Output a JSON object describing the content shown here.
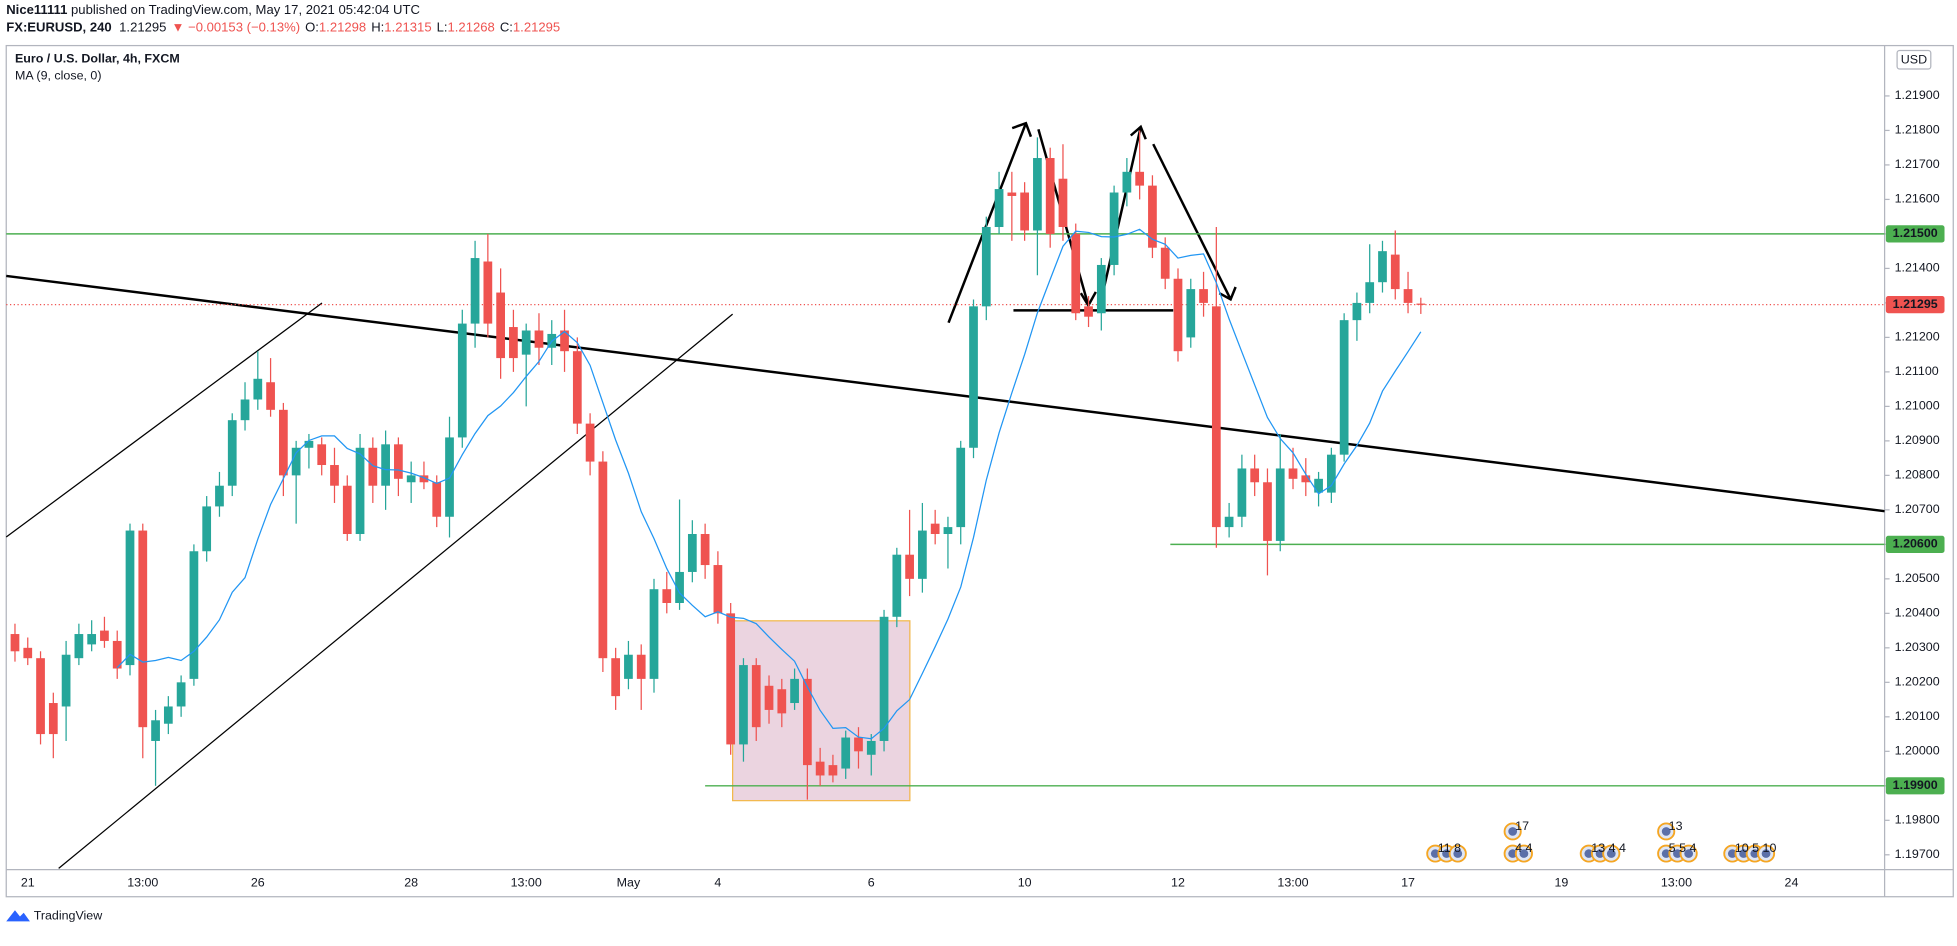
{
  "chart_data": {
    "type": "candlestick",
    "title": "Euro / U.S. Dollar, 4h, FXCM",
    "currency": "USD",
    "up_color": "#26a69a",
    "down_color": "#ef5350",
    "grid": false,
    "ylim": [
      1.19657,
      1.22046
    ],
    "yticks": [
      {
        "value": 1.197,
        "label": "1.19700"
      },
      {
        "value": 1.198,
        "label": "1.19800"
      },
      {
        "value": 1.199,
        "label": "1.19900"
      },
      {
        "value": 1.2,
        "label": "1.20000"
      },
      {
        "value": 1.201,
        "label": "1.20100"
      },
      {
        "value": 1.202,
        "label": "1.20200"
      },
      {
        "value": 1.203,
        "label": "1.20300"
      },
      {
        "value": 1.204,
        "label": "1.20400"
      },
      {
        "value": 1.205,
        "label": "1.20500"
      },
      {
        "value": 1.206,
        "label": "1.20600"
      },
      {
        "value": 1.207,
        "label": "1.20700"
      },
      {
        "value": 1.208,
        "label": "1.20800"
      },
      {
        "value": 1.209,
        "label": "1.20900"
      },
      {
        "value": 1.21,
        "label": "1.21000"
      },
      {
        "value": 1.211,
        "label": "1.21100"
      },
      {
        "value": 1.212,
        "label": "1.21200"
      },
      {
        "value": 1.213,
        "label": "1.21300"
      },
      {
        "value": 1.214,
        "label": "1.21400"
      },
      {
        "value": 1.215,
        "label": "1.21500"
      },
      {
        "value": 1.216,
        "label": "1.21600"
      },
      {
        "value": 1.217,
        "label": "1.21700"
      },
      {
        "value": 1.218,
        "label": "1.21800"
      },
      {
        "value": 1.219,
        "label": "1.21900"
      }
    ],
    "categories": [
      null,
      "21",
      null,
      null,
      null,
      null,
      null,
      null,
      null,
      null,
      "13:00",
      null,
      null,
      null,
      null,
      null,
      null,
      null,
      null,
      "26",
      null,
      null,
      null,
      null,
      null,
      null,
      null,
      null,
      null,
      null,
      null,
      "28",
      null,
      null,
      null,
      null,
      null,
      null,
      null,
      null,
      "13:00",
      null,
      null,
      null,
      null,
      null,
      null,
      null,
      "May",
      null,
      null,
      null,
      null,
      null,
      null,
      "4",
      null,
      null,
      null,
      null,
      null,
      null,
      null,
      null,
      null,
      null,
      null,
      "6",
      null,
      null,
      null,
      null,
      null,
      null,
      null,
      null,
      null,
      null,
      null,
      "10",
      null,
      null,
      null,
      null,
      null,
      null,
      null,
      null,
      null,
      null,
      null,
      "12",
      null,
      null,
      null,
      null,
      null,
      null,
      null,
      null,
      "13:00",
      null,
      null,
      null,
      null,
      null,
      null,
      null,
      null,
      "17",
      null,
      null,
      null,
      null,
      null,
      null,
      null,
      null,
      null,
      null,
      null,
      "19",
      null,
      null,
      null,
      null,
      null,
      null,
      null,
      null,
      "13:00",
      null,
      null,
      null,
      null,
      null,
      null,
      null,
      null,
      "24",
      null,
      null,
      null,
      null,
      null,
      null,
      null
    ],
    "open": [
      1.2034,
      1.203,
      1.2027,
      1.2014,
      1.2013,
      1.2027,
      1.2031,
      1.2035,
      1.2032,
      1.2025,
      1.2064,
      1.2003,
      1.2008,
      1.2013,
      1.2021,
      1.2058,
      1.2071,
      1.2077,
      1.2096,
      1.2102,
      1.2107,
      1.2099,
      1.208,
      1.2088,
      1.2089,
      1.2083,
      1.2077,
      1.2063,
      1.2088,
      1.2077,
      1.2089,
      1.2078,
      1.208,
      1.2078,
      1.2068,
      1.2091,
      1.2124,
      1.2142,
      1.2133,
      1.2123,
      1.2115,
      1.2122,
      1.2117,
      1.2122,
      1.2116,
      1.2095,
      1.2084,
      1.2027,
      1.2021,
      1.2028,
      1.2021,
      1.2047,
      1.2043,
      1.2052,
      1.2063,
      1.2054,
      1.204,
      1.2002,
      1.2025,
      1.2019,
      1.2018,
      1.2014,
      1.2021,
      1.1997,
      1.1996,
      1.1995,
      1.2004,
      1.1999,
      1.2003,
      1.2039,
      1.2057,
      1.205,
      1.2066,
      1.2063,
      1.2065,
      1.2088,
      1.2129,
      1.2152,
      1.2162,
      1.2162,
      1.2151,
      1.2172,
      1.2166,
      1.215,
      1.2129,
      1.2127,
      1.2141,
      1.2162,
      1.2168,
      1.2164,
      1.2146,
      1.2137,
      1.212,
      1.2134,
      1.2129,
      1.2065,
      1.2068,
      1.2082,
      1.2078,
      1.2061,
      1.2082,
      1.208,
      1.2075,
      1.2075,
      1.2086,
      1.2125,
      1.213,
      1.2136,
      1.2144,
      1.2134,
      1.21298,
      null,
      null,
      null,
      null,
      null,
      null,
      null,
      null,
      null,
      null,
      null,
      null,
      null,
      null,
      null,
      null,
      null,
      null,
      null,
      null,
      null,
      null,
      null,
      null,
      null,
      null,
      null,
      null,
      null,
      null,
      null,
      null,
      null,
      null,
      null,
      null
    ],
    "high": [
      1.2037,
      1.2033,
      1.2029,
      1.2017,
      1.2032,
      1.2037,
      1.2038,
      1.2039,
      1.2035,
      1.2066,
      1.2066,
      1.2012,
      1.2016,
      1.2022,
      1.206,
      1.2074,
      1.2081,
      1.2098,
      1.2107,
      1.2116,
      1.2114,
      1.2101,
      1.209,
      1.2092,
      1.2091,
      1.2088,
      1.208,
      1.2092,
      1.2091,
      1.2093,
      1.2091,
      1.2084,
      1.2084,
      1.208,
      1.2097,
      1.2128,
      1.2148,
      1.215,
      1.214,
      1.2128,
      1.2124,
      1.2127,
      1.2125,
      1.2128,
      1.212,
      1.2098,
      1.2087,
      1.203,
      1.2032,
      1.2031,
      1.205,
      1.2052,
      1.2073,
      1.2067,
      1.2066,
      1.2058,
      1.2043,
      1.2027,
      1.2027,
      1.2022,
      1.2021,
      1.2024,
      1.2024,
      1.2001,
      1.1999,
      1.2006,
      1.2007,
      1.2005,
      1.2041,
      1.2059,
      1.207,
      1.2072,
      1.207,
      1.2068,
      1.209,
      1.2131,
      1.2155,
      1.2168,
      1.2168,
      1.2165,
      1.2178,
      1.2175,
      1.2176,
      1.2153,
      1.2132,
      1.2143,
      1.2164,
      1.2172,
      1.218,
      1.2167,
      1.2149,
      1.214,
      1.2137,
      1.2139,
      1.2152,
      1.2072,
      1.2086,
      1.2086,
      1.2082,
      1.2092,
      1.2088,
      1.2085,
      1.2081,
      1.2088,
      1.2127,
      1.2133,
      1.2147,
      1.2148,
      1.2151,
      1.2139,
      1.21315,
      null,
      null,
      null,
      null,
      null,
      null,
      null,
      null,
      null,
      null,
      null,
      null,
      null,
      null,
      null,
      null,
      null,
      null,
      null,
      null,
      null,
      null,
      null,
      null,
      null,
      null,
      null,
      null,
      null,
      null,
      null,
      null,
      null,
      null,
      null,
      null
    ],
    "low": [
      1.2026,
      1.2025,
      1.2002,
      1.1998,
      1.2003,
      1.2025,
      1.2029,
      1.203,
      1.2021,
      1.2022,
      1.1998,
      1.199,
      1.2005,
      1.201,
      1.2019,
      1.2055,
      1.2068,
      1.2074,
      1.2093,
      1.2099,
      1.2097,
      1.2074,
      1.2066,
      1.2082,
      1.208,
      1.2072,
      1.2061,
      1.2061,
      1.2072,
      1.207,
      1.2074,
      1.2072,
      1.2076,
      1.2065,
      1.2062,
      1.2088,
      1.2117,
      1.212,
      1.2108,
      1.211,
      1.21,
      1.2112,
      1.2112,
      1.211,
      1.2092,
      1.208,
      1.2023,
      1.2012,
      1.2018,
      1.2012,
      1.2017,
      1.204,
      1.2041,
      1.2049,
      1.205,
      1.2037,
      1.1999,
      1.1997,
      1.2003,
      1.2008,
      1.2007,
      1.2012,
      1.1986,
      1.199,
      1.1991,
      1.1992,
      1.1995,
      1.1993,
      1.2,
      1.2036,
      1.2045,
      1.2046,
      1.206,
      1.2053,
      1.206,
      1.2085,
      1.2125,
      1.215,
      1.2148,
      1.2148,
      1.2138,
      1.2146,
      1.2148,
      1.2125,
      1.2123,
      1.2122,
      1.2138,
      1.2158,
      1.216,
      1.2143,
      1.2134,
      1.2113,
      1.2117,
      1.2126,
      1.2059,
      1.2062,
      1.2065,
      1.2074,
      1.2051,
      1.2058,
      1.2076,
      1.2074,
      1.2071,
      1.2072,
      1.2084,
      1.2119,
      1.2127,
      1.2133,
      1.2131,
      1.2127,
      1.21268,
      null,
      null,
      null,
      null,
      null,
      null,
      null,
      null,
      null,
      null,
      null,
      null,
      null,
      null,
      null,
      null,
      null,
      null,
      null,
      null,
      null,
      null,
      null,
      null,
      null,
      null,
      null,
      null,
      null,
      null,
      null,
      null,
      null,
      null,
      null,
      null
    ],
    "close": [
      1.2029,
      1.2027,
      1.2005,
      1.2005,
      1.2028,
      1.2034,
      1.2034,
      1.2032,
      1.2024,
      1.2064,
      1.2007,
      1.2009,
      1.2013,
      1.202,
      1.2058,
      1.2071,
      1.2077,
      1.2096,
      1.2102,
      1.2108,
      1.2099,
      1.208,
      1.2088,
      1.209,
      1.2083,
      1.2077,
      1.2063,
      1.2088,
      1.2077,
      1.2089,
      1.2079,
      1.208,
      1.2078,
      1.2068,
      1.2091,
      1.2124,
      1.2143,
      1.2124,
      1.2114,
      1.2114,
      1.2122,
      1.2117,
      1.2121,
      1.2116,
      1.2095,
      1.2084,
      1.2027,
      1.2016,
      1.2028,
      1.2021,
      1.2047,
      1.2043,
      1.2052,
      1.2063,
      1.2054,
      1.204,
      1.2002,
      1.2025,
      1.2007,
      1.2012,
      1.2011,
      1.2021,
      1.1996,
      1.1993,
      1.1993,
      1.2004,
      1.2,
      1.2003,
      1.2039,
      1.2057,
      1.205,
      1.2064,
      1.2063,
      1.2065,
      1.2088,
      1.2129,
      1.2152,
      1.2163,
      1.2161,
      1.2151,
      1.2172,
      1.215,
      1.2152,
      1.2127,
      1.2126,
      1.2141,
      1.2162,
      1.2168,
      1.2164,
      1.2146,
      1.2137,
      1.2116,
      1.2134,
      1.213,
      1.2065,
      1.2068,
      1.2082,
      1.2078,
      1.2061,
      1.2082,
      1.2079,
      1.2078,
      1.2079,
      1.2086,
      1.2125,
      1.213,
      1.2136,
      1.2145,
      1.2134,
      1.213,
      1.21295,
      null,
      null,
      null,
      null,
      null,
      null,
      null,
      null,
      null,
      null,
      null,
      null,
      null,
      null,
      null,
      null,
      null,
      null,
      null,
      null,
      null,
      null,
      null,
      null,
      null,
      null,
      null,
      null,
      null,
      null,
      null,
      null,
      null,
      null,
      null,
      null
    ],
    "ma": {
      "label": "MA (9, close, 0)",
      "period": 9,
      "color": "#2196f3"
    },
    "levels": [
      {
        "value": 1.215,
        "label": "1.21500",
        "color": "#4caf50"
      },
      {
        "value": 1.206,
        "label": "1.20600",
        "color": "#4caf50"
      },
      {
        "value": 1.199,
        "label": "1.19900",
        "color": "#4caf50"
      }
    ],
    "last_price": {
      "value": 1.21295,
      "label": "1.21295",
      "color": "#ef5350"
    }
  },
  "header": {
    "publisher": "Nice11111",
    "published": "published on TradingView.com, May 17, 2021 05:42:04 UTC",
    "symbol": "FX:EURUSD, 240",
    "last": "1.21295",
    "change": "▼ −0.00153 (−0.13%)",
    "ohlc": [
      {
        "key": "O:",
        "value": "1.21298"
      },
      {
        "key": "H:",
        "value": "1.21315"
      },
      {
        "key": "L:",
        "value": "1.21268"
      },
      {
        "key": "C:",
        "value": "1.21295"
      }
    ]
  },
  "events": [
    {
      "label": "11 8"
    },
    {
      "label": "17"
    },
    {
      "label": "4 4"
    },
    {
      "label": "13 4 4"
    },
    {
      "label": "13"
    },
    {
      "label": "5 5 4"
    },
    {
      "label": "10 5 10"
    }
  ],
  "footer": "TradingView"
}
